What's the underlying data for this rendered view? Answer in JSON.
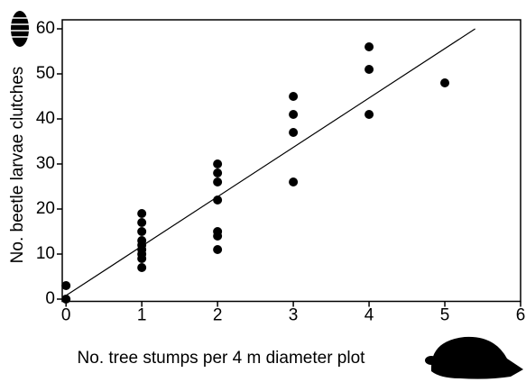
{
  "chart_data": {
    "type": "scatter",
    "xlabel": "No. tree stumps per 4 m diameter plot",
    "ylabel": "No. beetle larvae clutches",
    "x": [
      0,
      0,
      1,
      1,
      1,
      1,
      1,
      1,
      1,
      1,
      1,
      2,
      2,
      2,
      2,
      2,
      2,
      2,
      3,
      3,
      3,
      3,
      4,
      4,
      4,
      5
    ],
    "y": [
      3,
      0,
      19,
      17,
      15,
      13,
      12,
      11,
      10,
      9,
      7,
      30,
      28,
      26,
      22,
      15,
      14,
      11,
      45,
      41,
      37,
      26,
      56,
      51,
      41,
      48
    ],
    "fit": {
      "x": [
        0,
        5.4
      ],
      "y": [
        0.8,
        60
      ]
    },
    "color": "#000000",
    "xlim": [
      -0.05,
      6
    ],
    "ylim": [
      -0.5,
      62
    ],
    "xticks": [
      0,
      1,
      2,
      3,
      4,
      5,
      6
    ],
    "yticks": [
      0,
      10,
      20,
      30,
      40,
      50,
      60
    ]
  }
}
